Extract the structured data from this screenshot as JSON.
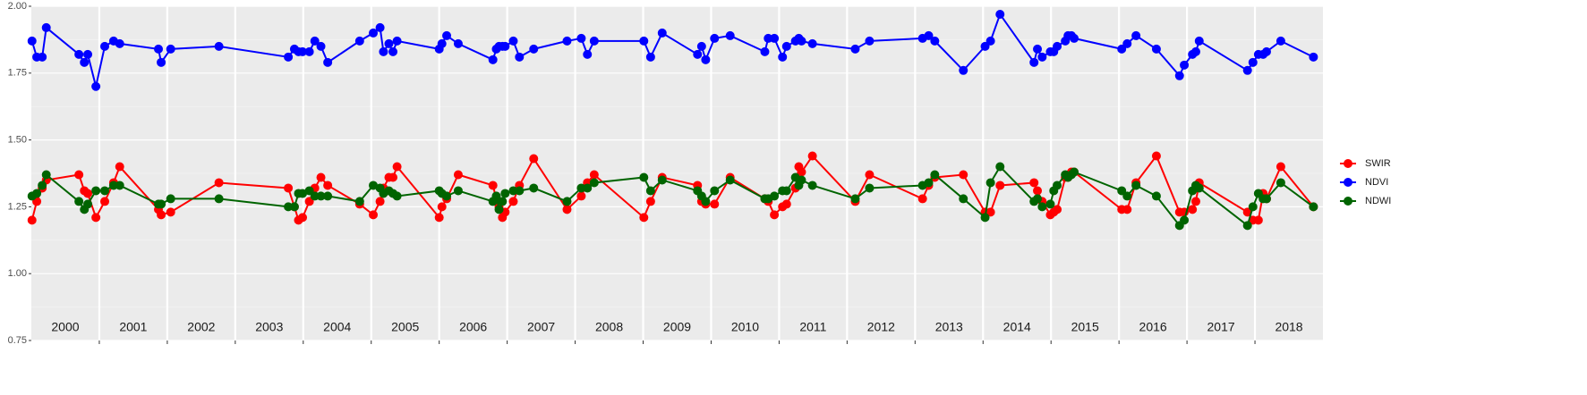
{
  "chart_data": {
    "type": "line",
    "x": [
      2000.01,
      2000.08,
      2000.16,
      2000.22,
      2000.7,
      2000.78,
      2000.83,
      2000.95,
      2001.08,
      2001.21,
      2001.3,
      2001.87,
      2001.91,
      2002.05,
      2002.76,
      2003.78,
      2003.87,
      2003.93,
      2003.99,
      2004.09,
      2004.17,
      2004.26,
      2004.36,
      2004.83,
      2005.03,
      2005.13,
      2005.18,
      2005.26,
      2005.32,
      2005.38,
      2006.0,
      2006.04,
      2006.11,
      2006.28,
      2006.79,
      2006.84,
      2006.88,
      2006.93,
      2006.97,
      2007.09,
      2007.18,
      2007.39,
      2007.88,
      2008.09,
      2008.18,
      2008.28,
      2009.01,
      2009.11,
      2009.28,
      2009.8,
      2009.86,
      2009.92,
      2010.05,
      2010.28,
      2010.79,
      2010.84,
      2010.93,
      2011.05,
      2011.11,
      2011.24,
      2011.29,
      2011.33,
      2011.49,
      2012.12,
      2012.33,
      2013.11,
      2013.2,
      2013.29,
      2013.71,
      2014.03,
      2014.11,
      2014.25,
      2014.75,
      2014.8,
      2014.87,
      2014.99,
      2015.04,
      2015.09,
      2015.21,
      2015.25,
      2015.3,
      2015.34,
      2016.04,
      2016.12,
      2016.25,
      2016.55,
      2016.89,
      2016.96,
      2017.08,
      2017.13,
      2017.18,
      2017.89,
      2017.97,
      2018.05,
      2018.12,
      2018.17,
      2018.38,
      2018.86
    ],
    "series": [
      {
        "name": "SWIR",
        "color": "#ff0000",
        "values": [
          1.2,
          1.27,
          1.32,
          1.35,
          1.37,
          1.31,
          1.3,
          1.21,
          1.27,
          1.34,
          1.4,
          1.24,
          1.22,
          1.23,
          1.34,
          1.32,
          1.25,
          1.2,
          1.21,
          1.27,
          1.32,
          1.36,
          1.33,
          1.26,
          1.22,
          1.27,
          1.32,
          1.36,
          1.36,
          1.4,
          1.21,
          1.25,
          1.28,
          1.37,
          1.33,
          1.28,
          1.25,
          1.21,
          1.23,
          1.27,
          1.33,
          1.43,
          1.24,
          1.29,
          1.34,
          1.37,
          1.21,
          1.27,
          1.36,
          1.33,
          1.27,
          1.26,
          1.26,
          1.36,
          1.28,
          1.27,
          1.22,
          1.25,
          1.26,
          1.32,
          1.4,
          1.38,
          1.44,
          1.27,
          1.37,
          1.28,
          1.33,
          1.36,
          1.37,
          1.23,
          1.23,
          1.33,
          1.34,
          1.31,
          1.27,
          1.22,
          1.23,
          1.24,
          1.36,
          1.36,
          1.38,
          1.38,
          1.24,
          1.24,
          1.34,
          1.44,
          1.23,
          1.23,
          1.24,
          1.27,
          1.34,
          1.23,
          1.2,
          1.2,
          1.3,
          1.28,
          1.4,
          1.25
        ]
      },
      {
        "name": "NDVI",
        "color": "#0000ff",
        "values": [
          1.87,
          1.81,
          1.81,
          1.92,
          1.82,
          1.79,
          1.82,
          1.7,
          1.85,
          1.87,
          1.86,
          1.84,
          1.79,
          1.84,
          1.85,
          1.81,
          1.84,
          1.83,
          1.83,
          1.83,
          1.87,
          1.85,
          1.79,
          1.87,
          1.9,
          1.92,
          1.83,
          1.86,
          1.83,
          1.87,
          1.84,
          1.86,
          1.89,
          1.86,
          1.8,
          1.84,
          1.85,
          1.85,
          1.85,
          1.87,
          1.81,
          1.84,
          1.87,
          1.88,
          1.82,
          1.87,
          1.87,
          1.81,
          1.9,
          1.82,
          1.85,
          1.8,
          1.88,
          1.89,
          1.83,
          1.88,
          1.88,
          1.81,
          1.85,
          1.87,
          1.88,
          1.87,
          1.86,
          1.84,
          1.87,
          1.88,
          1.89,
          1.87,
          1.76,
          1.85,
          1.87,
          1.97,
          1.79,
          1.84,
          1.81,
          1.83,
          1.83,
          1.85,
          1.87,
          1.89,
          1.89,
          1.88,
          1.84,
          1.86,
          1.89,
          1.84,
          1.74,
          1.78,
          1.82,
          1.83,
          1.87,
          1.76,
          1.79,
          1.82,
          1.82,
          1.83,
          1.87,
          1.81
        ]
      },
      {
        "name": "NDWI",
        "color": "#006400",
        "values": [
          1.29,
          1.3,
          1.33,
          1.37,
          1.27,
          1.24,
          1.26,
          1.31,
          1.31,
          1.33,
          1.33,
          1.26,
          1.26,
          1.28,
          1.28,
          1.25,
          1.25,
          1.3,
          1.3,
          1.31,
          1.29,
          1.29,
          1.29,
          1.27,
          1.33,
          1.32,
          1.3,
          1.31,
          1.3,
          1.29,
          1.31,
          1.3,
          1.29,
          1.31,
          1.27,
          1.29,
          1.24,
          1.27,
          1.3,
          1.31,
          1.31,
          1.32,
          1.27,
          1.32,
          1.32,
          1.34,
          1.36,
          1.31,
          1.35,
          1.31,
          1.29,
          1.27,
          1.31,
          1.35,
          1.28,
          1.28,
          1.29,
          1.31,
          1.31,
          1.36,
          1.33,
          1.35,
          1.33,
          1.28,
          1.32,
          1.33,
          1.34,
          1.37,
          1.28,
          1.21,
          1.34,
          1.4,
          1.27,
          1.28,
          1.25,
          1.26,
          1.31,
          1.33,
          1.37,
          1.36,
          1.37,
          1.38,
          1.31,
          1.29,
          1.33,
          1.29,
          1.18,
          1.2,
          1.31,
          1.33,
          1.32,
          1.18,
          1.25,
          1.3,
          1.28,
          1.28,
          1.34,
          1.25
        ]
      }
    ],
    "xlim": [
      2000,
      2019
    ],
    "xticks": [
      2001,
      2002,
      2003,
      2004,
      2005,
      2006,
      2007,
      2008,
      2009,
      2010,
      2011,
      2012,
      2013,
      2014,
      2015,
      2016,
      2017,
      2018
    ],
    "year_labels": [
      2000,
      2001,
      2002,
      2003,
      2004,
      2005,
      2006,
      2007,
      2008,
      2009,
      2010,
      2011,
      2012,
      2013,
      2014,
      2015,
      2016,
      2017,
      2018
    ],
    "ylim": [
      0.75,
      2.0
    ],
    "yticks": [
      {
        "value": 0.75,
        "label": "0.75"
      },
      {
        "value": 1,
        "label": "1.00"
      },
      {
        "value": 1.25,
        "label": "1.25"
      },
      {
        "value": 1.5,
        "label": "1.50"
      },
      {
        "value": 1.75,
        "label": "1.75"
      },
      {
        "value": 2,
        "label": "2.00"
      }
    ],
    "grid": true,
    "legend": "right"
  }
}
